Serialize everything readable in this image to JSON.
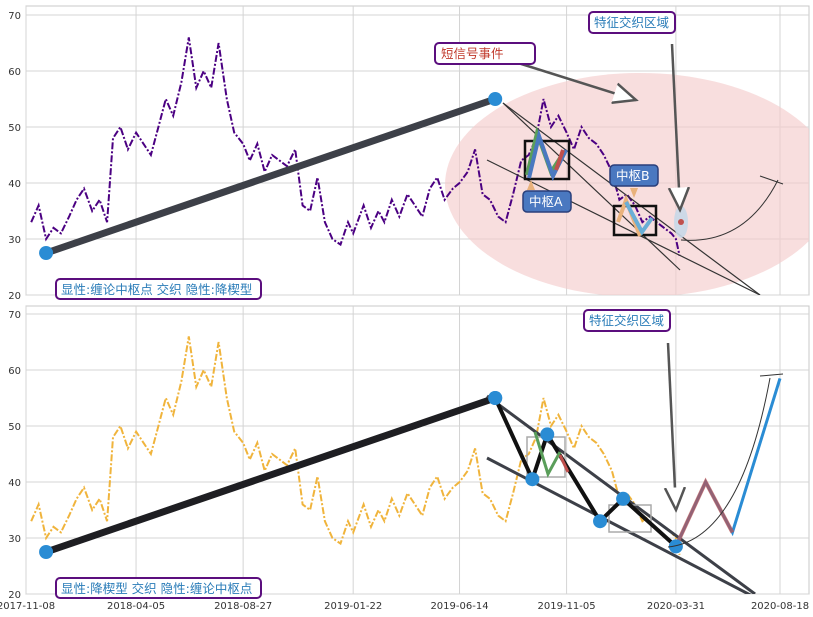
{
  "chart_data": [
    {
      "type": "line",
      "panel": "top",
      "ylim": [
        20,
        71
      ],
      "yticks": [
        20,
        30,
        40,
        50,
        60,
        70
      ],
      "grid": true,
      "x_dates_ticks": [
        "2017-11-08",
        "2018-04-05",
        "2018-08-27",
        "2019-01-22",
        "2019-06-14",
        "2019-11-05",
        "2020-03-31",
        "2020-08-18"
      ],
      "series": [
        {
          "style": "dash-dot",
          "color": "#4b0082",
          "x": [
            "2017-11-15",
            "2017-11-25",
            "2017-12-05",
            "2017-12-15",
            "2017-12-25",
            "2018-01-05",
            "2018-01-15",
            "2018-01-25",
            "2018-02-05",
            "2018-02-15",
            "2018-02-25",
            "2018-03-05",
            "2018-03-15",
            "2018-03-25",
            "2018-04-05",
            "2018-04-15",
            "2018-04-25",
            "2018-05-05",
            "2018-05-15",
            "2018-05-25",
            "2018-06-05",
            "2018-06-15",
            "2018-06-25",
            "2018-07-05",
            "2018-07-15",
            "2018-07-25",
            "2018-08-05",
            "2018-08-15",
            "2018-08-27",
            "2018-09-05",
            "2018-09-15",
            "2018-09-25",
            "2018-10-05",
            "2018-10-15",
            "2018-10-25",
            "2018-11-05",
            "2018-11-15",
            "2018-11-25",
            "2018-12-05",
            "2018-12-15",
            "2018-12-25",
            "2019-01-05",
            "2019-01-15",
            "2019-01-22",
            "2019-02-05",
            "2019-02-15",
            "2019-02-25",
            "2019-03-05",
            "2019-03-15",
            "2019-03-25",
            "2019-04-05",
            "2019-04-15",
            "2019-04-25",
            "2019-05-05",
            "2019-05-15",
            "2019-05-25",
            "2019-06-05",
            "2019-06-14",
            "2019-06-25",
            "2019-07-05",
            "2019-07-15",
            "2019-07-25",
            "2019-08-05",
            "2019-08-15",
            "2019-08-25",
            "2019-09-05",
            "2019-09-15",
            "2019-09-25",
            "2019-10-05",
            "2019-10-15",
            "2019-10-25",
            "2019-11-05",
            "2019-11-15",
            "2019-11-25",
            "2019-12-05",
            "2019-12-15",
            "2019-12-25",
            "2020-01-05",
            "2020-01-15",
            "2020-01-25",
            "2020-02-05",
            "2020-02-15",
            "2020-02-25",
            "2020-03-05",
            "2020-03-15",
            "2020-03-25",
            "2020-03-31",
            "2020-04-05"
          ],
          "y": [
            33,
            36,
            30,
            32,
            31,
            34,
            37,
            39,
            35,
            37,
            33,
            48,
            50,
            46,
            49,
            47,
            45,
            50,
            55,
            52,
            58,
            66,
            57,
            60,
            57,
            65,
            55,
            49,
            47,
            44,
            47,
            42,
            45,
            44,
            43,
            46,
            36,
            35,
            41,
            33,
            30,
            29,
            33,
            31,
            36,
            32,
            35,
            33,
            37,
            34,
            38,
            36,
            34,
            39,
            41,
            37,
            39,
            40,
            42,
            46,
            38,
            37,
            34,
            33,
            38,
            44,
            45,
            48,
            55,
            50,
            52,
            49,
            46,
            50,
            48,
            47,
            45,
            42,
            37,
            38,
            36,
            33,
            34,
            33,
            32,
            31,
            30,
            27
          ]
        }
      ],
      "trend_segments": [
        {
          "from": [
            "2017-12-05",
            27.5
          ],
          "to": [
            "2019-08-01",
            55
          ]
        }
      ],
      "annotations": [
        "显性:缠论中枢点 交织 隐性:降楔型",
        "短信号事件",
        "特征交织区域",
        "中枢A",
        "中枢B"
      ]
    },
    {
      "type": "line",
      "panel": "bottom",
      "ylim": [
        20,
        71
      ],
      "yticks": [
        20,
        30,
        40,
        50,
        60,
        70
      ],
      "grid": true,
      "xticks": [
        "2017-11-08",
        "2018-04-05",
        "2018-08-27",
        "2019-01-22",
        "2019-06-14",
        "2019-11-05",
        "2020-03-31",
        "2020-08-18"
      ],
      "series": [
        {
          "style": "dash-dot",
          "color": "#f0b43c",
          "x": [
            "2017-11-15",
            "2017-11-25",
            "2017-12-05",
            "2017-12-15",
            "2017-12-25",
            "2018-01-05",
            "2018-01-15",
            "2018-01-25",
            "2018-02-05",
            "2018-02-15",
            "2018-02-25",
            "2018-03-05",
            "2018-03-15",
            "2018-03-25",
            "2018-04-05",
            "2018-04-15",
            "2018-04-25",
            "2018-05-05",
            "2018-05-15",
            "2018-05-25",
            "2018-06-05",
            "2018-06-15",
            "2018-06-25",
            "2018-07-05",
            "2018-07-15",
            "2018-07-25",
            "2018-08-05",
            "2018-08-15",
            "2018-08-27",
            "2018-09-05",
            "2018-09-15",
            "2018-09-25",
            "2018-10-05",
            "2018-10-15",
            "2018-10-25",
            "2018-11-05",
            "2018-11-15",
            "2018-11-25",
            "2018-12-05",
            "2018-12-15",
            "2018-12-25",
            "2019-01-05",
            "2019-01-15",
            "2019-01-22",
            "2019-02-05",
            "2019-02-15",
            "2019-02-25",
            "2019-03-05",
            "2019-03-15",
            "2019-03-25",
            "2019-04-05",
            "2019-04-15",
            "2019-04-25",
            "2019-05-05",
            "2019-05-15",
            "2019-05-25",
            "2019-06-05",
            "2019-06-14",
            "2019-06-25",
            "2019-07-05",
            "2019-07-15",
            "2019-07-25",
            "2019-08-05",
            "2019-08-15",
            "2019-08-25",
            "2019-09-05",
            "2019-09-15",
            "2019-09-25",
            "2019-10-05",
            "2019-10-15",
            "2019-10-25",
            "2019-11-05",
            "2019-11-15",
            "2019-11-25",
            "2019-12-05",
            "2019-12-15",
            "2019-12-25",
            "2020-01-05",
            "2020-01-15",
            "2020-01-25",
            "2020-02-05",
            "2020-02-15",
            "2020-02-25",
            "2020-03-05",
            "2020-03-15",
            "2020-03-25",
            "2020-03-31",
            "2020-04-05"
          ],
          "y": [
            33,
            36,
            30,
            32,
            31,
            34,
            37,
            39,
            35,
            37,
            33,
            48,
            50,
            46,
            49,
            47,
            45,
            50,
            55,
            52,
            58,
            66,
            57,
            60,
            57,
            65,
            55,
            49,
            47,
            44,
            47,
            42,
            45,
            44,
            43,
            46,
            36,
            35,
            41,
            33,
            30,
            29,
            33,
            31,
            36,
            32,
            35,
            33,
            37,
            34,
            38,
            36,
            34,
            39,
            41,
            37,
            39,
            40,
            42,
            46,
            38,
            37,
            34,
            33,
            38,
            44,
            45,
            48,
            55,
            50,
            52,
            49,
            46,
            50,
            48,
            47,
            45,
            42,
            37,
            38,
            36,
            33,
            34,
            33,
            32,
            31,
            30,
            27
          ]
        }
      ],
      "zigzag_points": [
        [
          "2019-08-01",
          55
        ],
        [
          "2019-09-20",
          40.5
        ],
        [
          "2019-10-10",
          48.5
        ],
        [
          "2019-12-20",
          33
        ],
        [
          "2020-01-20",
          37
        ],
        [
          "2020-03-31",
          28.5
        ],
        [
          "2020-05-10",
          40
        ],
        [
          "2020-06-15",
          31
        ],
        [
          "2020-08-18",
          58.5
        ]
      ],
      "trend_segments": [
        {
          "from": [
            "2017-12-05",
            27.5
          ],
          "to": [
            "2019-08-01",
            55
          ]
        }
      ],
      "annotations": [
        "显性:降楔型 交织 隐性:缠论中枢点",
        "特征交织区域"
      ]
    }
  ],
  "colors": {
    "accent_blue": "#2a8cd4",
    "label_border": "#5b0e7e",
    "label_text": "#2a7cb8",
    "event_text": "#c0392b",
    "ellipse_fill": "#f4cccc",
    "zigzag_green": "#5a9e5a",
    "zigzag_blue": "#4a78c0",
    "zigzag_red": "#c0504d"
  }
}
